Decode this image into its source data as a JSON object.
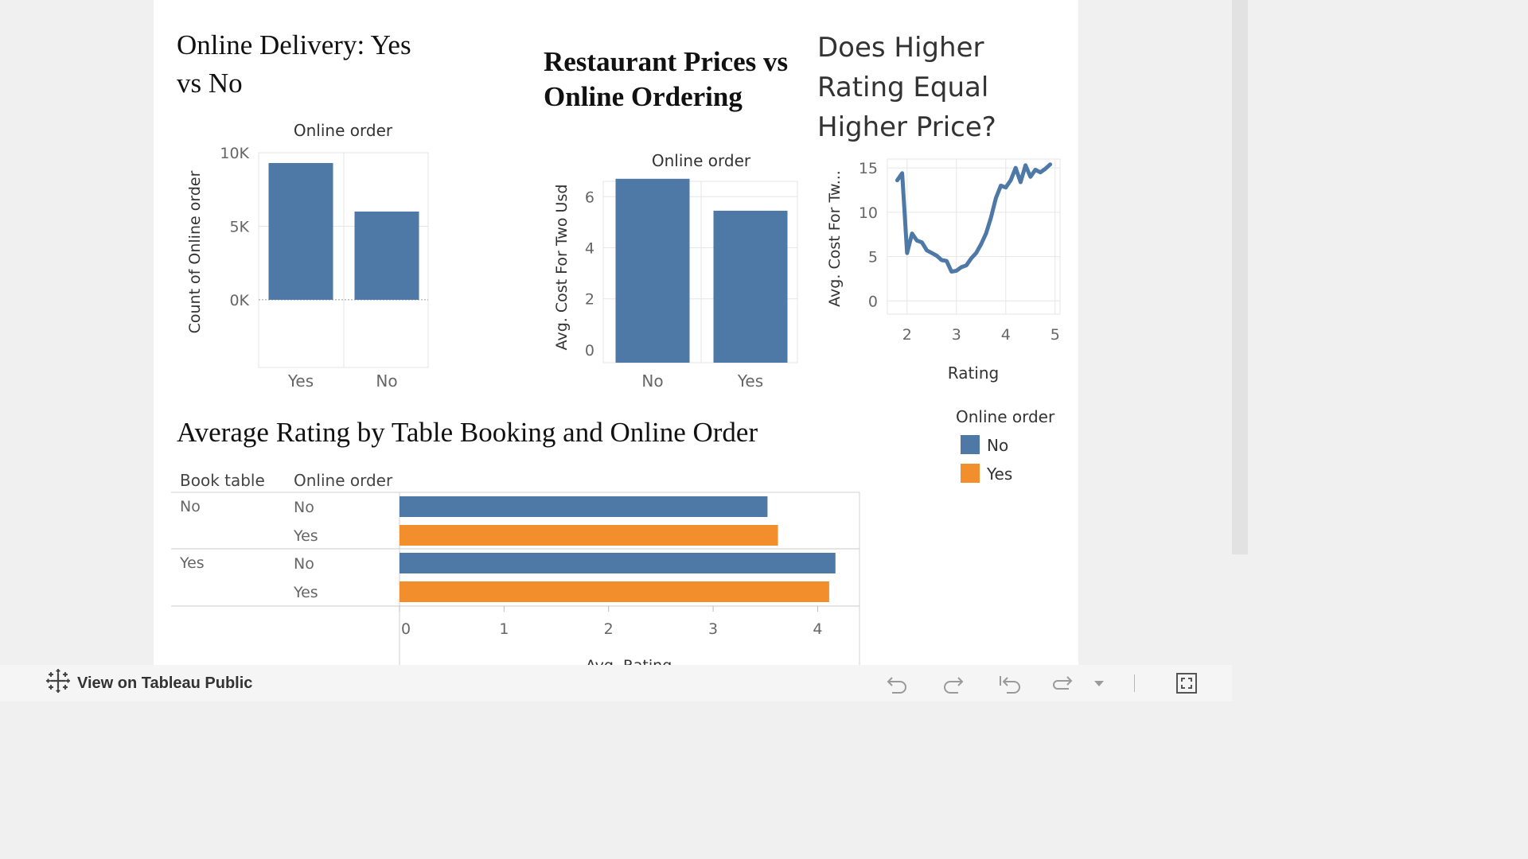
{
  "colors": {
    "blue": "#4e79a7",
    "orange": "#f28e2b",
    "grid": "#e6e6e6",
    "axis_text": "#666666"
  },
  "footer": {
    "link_label": "View on Tableau Public",
    "icons": [
      "tableau-logo-icon",
      "undo-icon",
      "redo-icon",
      "revert-icon",
      "refresh-icon",
      "dropdown-icon",
      "fullscreen-icon"
    ]
  },
  "legend": {
    "title": "Online order",
    "items": [
      {
        "label": "No",
        "color": "#4e79a7"
      },
      {
        "label": "Yes",
        "color": "#f28e2b"
      }
    ]
  },
  "chart_data": [
    {
      "type": "bar",
      "title": "Online Delivery: Yes vs No",
      "header": "Online order",
      "categories": [
        "Yes",
        "No"
      ],
      "values": [
        9300,
        6000
      ],
      "ylabel": "Count of Online order",
      "yticks": [
        "10K",
        "5K",
        "0K"
      ],
      "ytick_values": [
        10000,
        5000,
        0
      ],
      "ylim": [
        -4600,
        10000
      ],
      "grid": true
    },
    {
      "type": "bar",
      "title": "Restaurant Prices vs Online Ordering",
      "header": "Online order",
      "categories": [
        "No",
        "Yes"
      ],
      "values": [
        6.7,
        5.45
      ],
      "ylabel": "Avg. Cost For Two Usd",
      "yticks": [
        "6",
        "4",
        "2",
        "0"
      ],
      "ytick_values": [
        6,
        4,
        2,
        0
      ],
      "ylim": [
        -0.5,
        6.6
      ],
      "grid": true
    },
    {
      "type": "line",
      "title": "Does Higher Rating Equal Higher Price?",
      "xlabel": "Rating",
      "ylabel": "Avg. Cost For Tw...",
      "xticks": [
        "2",
        "3",
        "4",
        "5"
      ],
      "xtick_values": [
        2,
        3,
        4,
        5
      ],
      "yticks": [
        "15",
        "10",
        "5",
        "0"
      ],
      "ytick_values": [
        15,
        10,
        5,
        0
      ],
      "xlim": [
        1.6,
        5.1
      ],
      "ylim": [
        -1.5,
        16
      ],
      "x": [
        1.8,
        1.9,
        2.0,
        2.1,
        2.2,
        2.3,
        2.4,
        2.5,
        2.6,
        2.7,
        2.8,
        2.9,
        3.0,
        3.1,
        3.2,
        3.3,
        3.4,
        3.5,
        3.6,
        3.7,
        3.8,
        3.9,
        4.0,
        4.1,
        4.2,
        4.3,
        4.4,
        4.5,
        4.6,
        4.7,
        4.8,
        4.9
      ],
      "series": [
        {
          "values": [
            13.6,
            14.4,
            5.4,
            7.6,
            6.8,
            6.6,
            5.7,
            5.4,
            5.1,
            4.6,
            4.5,
            3.3,
            3.4,
            3.8,
            4.0,
            4.8,
            5.4,
            6.4,
            7.6,
            9.4,
            11.6,
            13.0,
            12.8,
            13.6,
            15.0,
            13.4,
            15.3,
            14.0,
            14.8,
            14.5,
            14.9,
            15.4
          ]
        }
      ],
      "grid": true
    },
    {
      "type": "bar",
      "orientation": "horizontal",
      "title": "Average Rating by Table Booking and Online Order",
      "row_headers": [
        "Book table",
        "Online order"
      ],
      "groups": [
        {
          "book_table": "No",
          "rows": [
            {
              "online_order": "No",
              "value": 3.52
            },
            {
              "online_order": "Yes",
              "value": 3.62
            }
          ]
        },
        {
          "book_table": "Yes",
          "rows": [
            {
              "online_order": "No",
              "value": 4.17
            },
            {
              "online_order": "Yes",
              "value": 4.11
            }
          ]
        }
      ],
      "xlabel": "Avg. Rating",
      "xticks": [
        "0",
        "1",
        "2",
        "3",
        "4"
      ],
      "xtick_values": [
        0,
        1,
        2,
        3,
        4
      ],
      "xlim": [
        0,
        4.4
      ],
      "grid": true
    }
  ]
}
